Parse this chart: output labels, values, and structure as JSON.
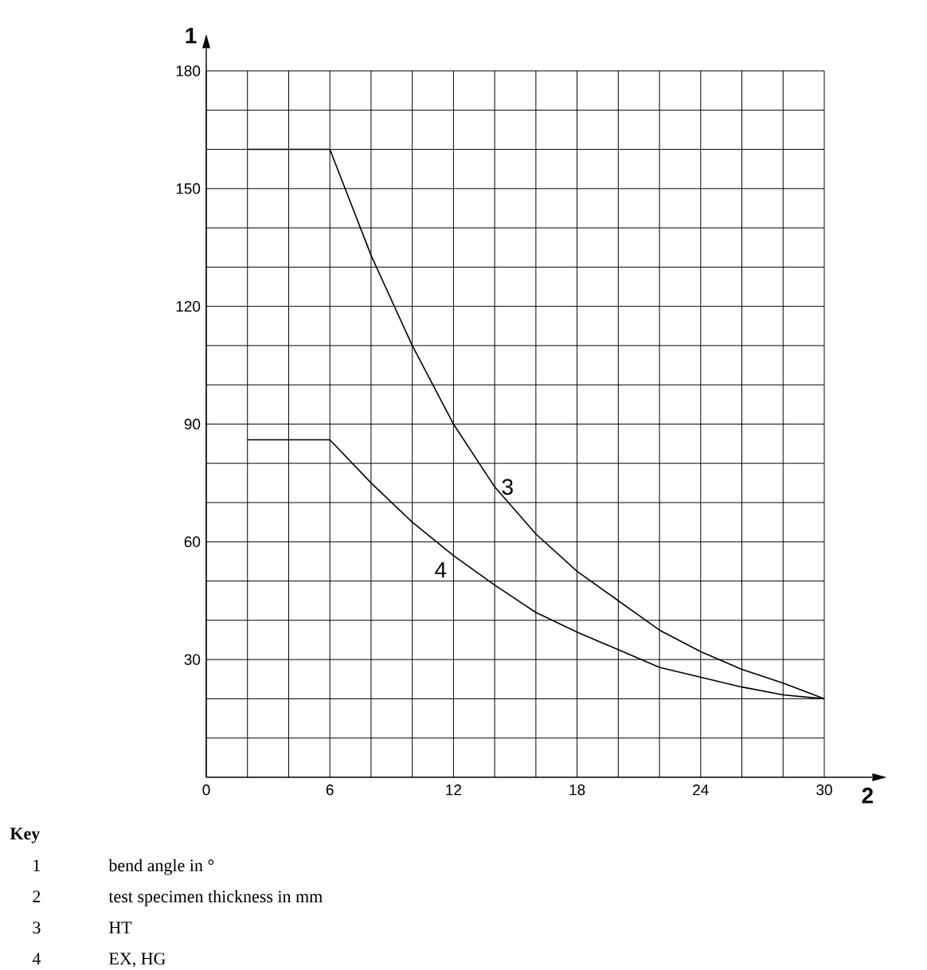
{
  "chart_data": {
    "type": "line",
    "xlabel": "2",
    "ylabel": "1",
    "xlim": [
      0,
      30
    ],
    "ylim": [
      0,
      180
    ],
    "xticks": [
      0,
      {
        "value": 2,
        "label": null
      },
      {
        "value": 4,
        "label": null
      },
      6,
      {
        "value": 8,
        "label": null
      },
      {
        "value": 10,
        "label": null
      },
      12,
      {
        "value": 14,
        "label": null
      },
      {
        "value": 16,
        "label": null
      },
      18,
      {
        "value": 20,
        "label": null
      },
      {
        "value": 22,
        "label": null
      },
      24,
      {
        "value": 26,
        "label": null
      },
      {
        "value": 28,
        "label": null
      },
      30
    ],
    "yticks": [
      {
        "value": 10,
        "label": null
      },
      {
        "value": 20,
        "label": null
      },
      30,
      {
        "value": 40,
        "label": null
      },
      {
        "value": 50,
        "label": null
      },
      60,
      {
        "value": 70,
        "label": null
      },
      {
        "value": 80,
        "label": null
      },
      90,
      {
        "value": 100,
        "label": null
      },
      {
        "value": 110,
        "label": null
      },
      120,
      {
        "value": 130,
        "label": null
      },
      {
        "value": 140,
        "label": null
      },
      150,
      {
        "value": 160,
        "label": null
      },
      {
        "value": 170,
        "label": null
      },
      180
    ],
    "grid": true,
    "marker": "none",
    "line_style": "solid",
    "series": [
      {
        "name": "3",
        "color": "#000000",
        "x": [
          2,
          6,
          8,
          10,
          12,
          14,
          16,
          18,
          20,
          22,
          24,
          26,
          28,
          30
        ],
        "values": [
          160,
          160,
          133,
          110,
          90,
          74,
          62,
          52.5,
          45,
          37.5,
          32,
          27.5,
          24,
          20
        ]
      },
      {
        "name": "4",
        "color": "#000000",
        "x": [
          2,
          6,
          8,
          10,
          12,
          14,
          16,
          18,
          20,
          22,
          24,
          26,
          28,
          30
        ],
        "values": [
          86,
          86,
          75,
          65,
          56.5,
          49,
          42,
          37,
          32.5,
          28,
          25.5,
          23,
          21,
          20
        ]
      }
    ],
    "annotations": [
      "Key",
      "1",
      "bend angle in °",
      "2",
      "test specimen thickness in mm",
      "3",
      "HT",
      "4",
      "EX, HG"
    ]
  }
}
